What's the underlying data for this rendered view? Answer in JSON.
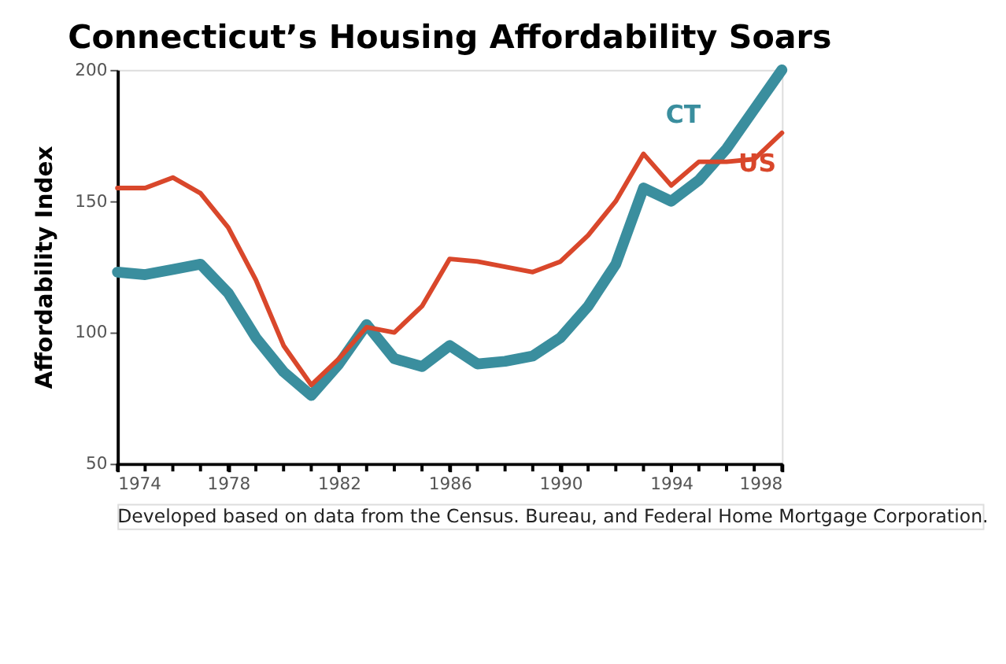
{
  "chart_data": {
    "type": "line",
    "title": "Connecticut’s Housing Affordability Soars",
    "ylabel": "Affordability Index",
    "x": [
      1974,
      1975,
      1976,
      1977,
      1978,
      1979,
      1980,
      1981,
      1982,
      1983,
      1984,
      1985,
      1986,
      1987,
      1988,
      1989,
      1990,
      1991,
      1992,
      1993,
      1994,
      1995,
      1996,
      1997,
      1998
    ],
    "series": [
      {
        "name": "US",
        "color": "#d9472b",
        "values": [
          155,
          155,
          159,
          153,
          140,
          120,
          95,
          80,
          90,
          102,
          100,
          110,
          128,
          127,
          125,
          123,
          127,
          137,
          150,
          168,
          156,
          165,
          165,
          166,
          176
        ]
      },
      {
        "name": "CT",
        "color": "#3a8e9e",
        "values": [
          123,
          122,
          124,
          126,
          115,
          98,
          85,
          76,
          88,
          103,
          90,
          87,
          95,
          88,
          89,
          91,
          98,
          110,
          126,
          155,
          150,
          158,
          170,
          185,
          200
        ]
      }
    ],
    "xlim": [
      1974,
      1998
    ],
    "xticks": [
      1974,
      {
        "value": 1975,
        "label": null
      },
      {
        "value": 1976,
        "label": null
      },
      {
        "value": 1977,
        "label": null
      },
      1978,
      {
        "value": 1979,
        "label": null
      },
      {
        "value": 1980,
        "label": null
      },
      {
        "value": 1981,
        "label": null
      },
      1982,
      {
        "value": 1983,
        "label": null
      },
      {
        "value": 1984,
        "label": null
      },
      {
        "value": 1985,
        "label": null
      },
      1986,
      {
        "value": 1987,
        "label": null
      },
      {
        "value": 1988,
        "label": null
      },
      {
        "value": 1989,
        "label": null
      },
      1990,
      {
        "value": 1991,
        "label": null
      },
      {
        "value": 1992,
        "label": null
      },
      {
        "value": 1993,
        "label": null
      },
      1994,
      {
        "value": 1995,
        "label": null
      },
      {
        "value": 1996,
        "label": null
      },
      {
        "value": 1997,
        "label": null
      },
      1998
    ],
    "ylim": [
      50,
      200
    ],
    "yticks": [
      50,
      100,
      150,
      200
    ],
    "grid": false,
    "legend": false,
    "marker": "none",
    "line_style": "solid",
    "annotations": [
      "Developed based on data from the Census. Bureau, and Federal Home Mortgage Corporation."
    ]
  }
}
